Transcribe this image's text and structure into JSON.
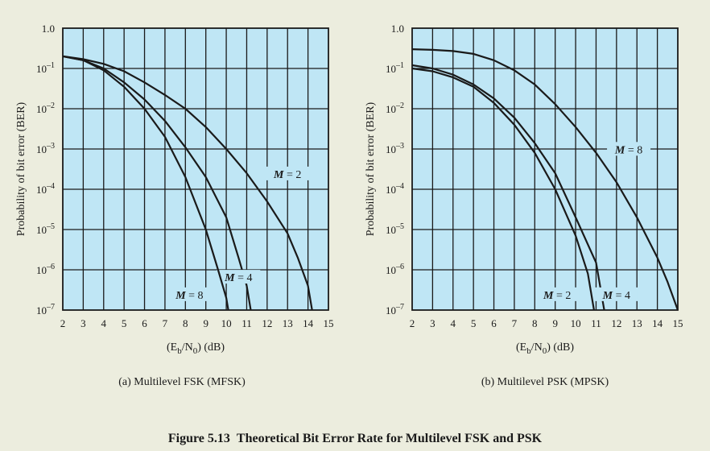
{
  "figure_caption": {
    "number": "Figure 5.13",
    "title": "Theoretical Bit Error Rate for Multilevel FSK and PSK"
  },
  "chart_data": [
    {
      "type": "line",
      "id": "a",
      "subtitle": "(a) Multilevel FSK (MFSK)",
      "xlabel": "(E_b/N_0) (dB)",
      "ylabel": "Probability of bit error (BER)",
      "yscale": "log",
      "xlim": [
        2,
        15
      ],
      "ylim": [
        1e-07,
        1.0
      ],
      "xticks": [
        "2",
        "3",
        "4",
        "5",
        "6",
        "7",
        "8",
        "9",
        "10",
        "11",
        "12",
        "13",
        "14",
        "15"
      ],
      "yticks": [
        {
          "base": "1.0",
          "exp": ""
        },
        {
          "base": "10",
          "exp": "–1"
        },
        {
          "base": "10",
          "exp": "–2"
        },
        {
          "base": "10",
          "exp": "–3"
        },
        {
          "base": "10",
          "exp": "–4"
        },
        {
          "base": "10",
          "exp": "–5"
        },
        {
          "base": "10",
          "exp": "–6"
        },
        {
          "base": "10",
          "exp": "–7"
        }
      ],
      "grid": true,
      "series": [
        {
          "name": "M = 2",
          "label_at": [
            13,
            0.00022
          ],
          "points": [
            [
              2,
              0.2
            ],
            [
              3,
              0.17
            ],
            [
              4,
              0.13
            ],
            [
              5,
              0.085
            ],
            [
              6,
              0.045
            ],
            [
              7,
              0.022
            ],
            [
              8,
              0.01
            ],
            [
              9,
              0.0035
            ],
            [
              10,
              0.001
            ],
            [
              11,
              0.00025
            ],
            [
              12,
              5e-05
            ],
            [
              13,
              8e-06
            ],
            [
              13.5,
              2e-06
            ],
            [
              14,
              4e-07
            ],
            [
              14.2,
              1e-07
            ]
          ]
        },
        {
          "name": "M = 4",
          "label_at": [
            10.6,
            6e-07
          ],
          "points": [
            [
              2,
              0.2
            ],
            [
              3,
              0.16
            ],
            [
              4,
              0.1
            ],
            [
              5,
              0.045
            ],
            [
              6,
              0.017
            ],
            [
              7,
              0.005
            ],
            [
              8,
              0.0011
            ],
            [
              9,
              0.0002
            ],
            [
              10,
              2e-05
            ],
            [
              10.6,
              2e-06
            ],
            [
              11,
              4e-07
            ],
            [
              11.2,
              1e-07
            ]
          ]
        },
        {
          "name": "M = 8",
          "label_at": [
            8.2,
            2.2e-07
          ],
          "points": [
            [
              2,
              0.2
            ],
            [
              3,
              0.16
            ],
            [
              4,
              0.09
            ],
            [
              5,
              0.035
            ],
            [
              6,
              0.01
            ],
            [
              7,
              0.002
            ],
            [
              8,
              0.0002
            ],
            [
              9,
              1e-05
            ],
            [
              9.6,
              1e-06
            ],
            [
              10,
              2e-07
            ],
            [
              10.1,
              1e-07
            ]
          ]
        }
      ]
    },
    {
      "type": "line",
      "id": "b",
      "subtitle": "(b) Multilevel PSK (MPSK)",
      "xlabel": "(E_b/N_0) (dB)",
      "ylabel": "Probability of bit error (BER)",
      "yscale": "log",
      "xlim": [
        2,
        15
      ],
      "ylim": [
        1e-07,
        1.0
      ],
      "xticks": [
        "2",
        "3",
        "4",
        "5",
        "6",
        "7",
        "8",
        "9",
        "10",
        "11",
        "12",
        "13",
        "14",
        "15"
      ],
      "yticks": [
        {
          "base": "1.0",
          "exp": ""
        },
        {
          "base": "10",
          "exp": "–1"
        },
        {
          "base": "10",
          "exp": "–2"
        },
        {
          "base": "10",
          "exp": "–3"
        },
        {
          "base": "10",
          "exp": "–4"
        },
        {
          "base": "10",
          "exp": "–5"
        },
        {
          "base": "10",
          "exp": "–6"
        },
        {
          "base": "10",
          "exp": "–7"
        }
      ],
      "grid": true,
      "series": [
        {
          "name": "M = 8",
          "label_at": [
            12.6,
            0.0009
          ],
          "points": [
            [
              2,
              0.3
            ],
            [
              3,
              0.29
            ],
            [
              4,
              0.27
            ],
            [
              5,
              0.23
            ],
            [
              6,
              0.16
            ],
            [
              7,
              0.09
            ],
            [
              8,
              0.04
            ],
            [
              9,
              0.013
            ],
            [
              10,
              0.0035
            ],
            [
              11,
              0.0008
            ],
            [
              12,
              0.00015
            ],
            [
              13,
              2e-05
            ],
            [
              14,
              2e-06
            ],
            [
              14.5,
              5e-07
            ],
            [
              15,
              1e-07
            ]
          ]
        },
        {
          "name": "M = 2",
          "label_at": [
            9.1,
            2.2e-07
          ],
          "points": [
            [
              2,
              0.1
            ],
            [
              3,
              0.085
            ],
            [
              4,
              0.06
            ],
            [
              5,
              0.035
            ],
            [
              6,
              0.014
            ],
            [
              7,
              0.004
            ],
            [
              8,
              0.0008
            ],
            [
              9,
              0.0001
            ],
            [
              10,
              7e-06
            ],
            [
              10.6,
              8e-07
            ],
            [
              10.9,
              1e-07
            ]
          ]
        },
        {
          "name": "M = 4",
          "label_at": [
            12.0,
            2.2e-07
          ],
          "points": [
            [
              2,
              0.12
            ],
            [
              3,
              0.1
            ],
            [
              4,
              0.07
            ],
            [
              5,
              0.04
            ],
            [
              6,
              0.018
            ],
            [
              7,
              0.006
            ],
            [
              8,
              0.0014
            ],
            [
              9,
              0.00025
            ],
            [
              10,
              2e-05
            ],
            [
              11,
              1.5e-06
            ],
            [
              11.4,
              1e-07
            ]
          ]
        }
      ]
    }
  ]
}
